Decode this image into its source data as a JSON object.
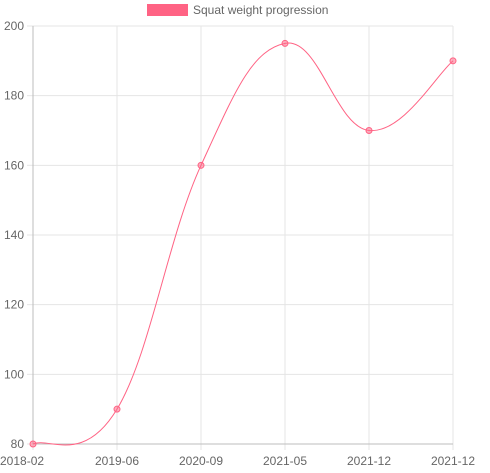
{
  "chart_data": {
    "type": "line",
    "categories": [
      "2018-02",
      "2019-06",
      "2020-09",
      "2021-05",
      "2021-12",
      "2021-12"
    ],
    "series": [
      {
        "name": "Squat weight progression",
        "values": [
          80,
          90,
          160,
          195,
          170,
          190
        ],
        "color": "#ff6384"
      }
    ],
    "ylim": [
      80,
      200
    ],
    "yticks": [
      80,
      100,
      120,
      140,
      160,
      180,
      200
    ],
    "grid": true,
    "legend_position": "top-center",
    "smooth": true
  }
}
